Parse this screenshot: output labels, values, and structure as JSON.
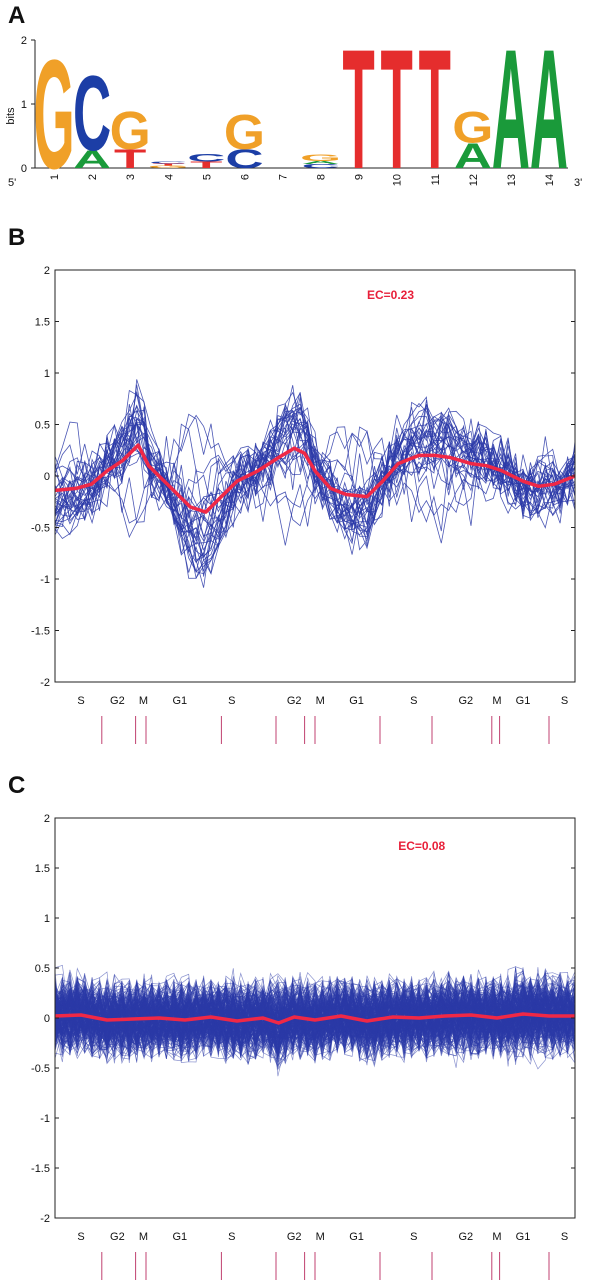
{
  "panels": {
    "a": "A",
    "b": "B",
    "c": "C"
  },
  "colors": {
    "A": "#1a9a3a",
    "C": "#1c3ea6",
    "G": "#f0a028",
    "T": "#e52d2d",
    "profile": "#2b3aa8",
    "mean": "#f02846",
    "axis": "#222222",
    "cycle_mark": "#c04070"
  },
  "chart_data": [
    {
      "type": "sequence-logo",
      "ylabel": "bits",
      "ylim": [
        0,
        2
      ],
      "yticks": [
        "0",
        "1",
        "2"
      ],
      "end_labels": {
        "left": "5'",
        "right": "3'"
      },
      "positions": [
        {
          "label": "1",
          "stack": [
            {
              "base": "G",
              "height": 1.75
            }
          ]
        },
        {
          "label": "2",
          "stack": [
            {
              "base": "A",
              "height": 0.28
            },
            {
              "base": "C",
              "height": 1.2
            }
          ]
        },
        {
          "label": "3",
          "stack": [
            {
              "base": "T",
              "height": 0.3
            },
            {
              "base": "G",
              "height": 0.6
            }
          ]
        },
        {
          "label": "4",
          "stack": [
            {
              "base": "G",
              "height": 0.04
            },
            {
              "base": "T",
              "height": 0.03
            },
            {
              "base": "C",
              "height": 0.03
            }
          ]
        },
        {
          "label": "5",
          "stack": [
            {
              "base": "T",
              "height": 0.1
            },
            {
              "base": "C",
              "height": 0.12
            }
          ]
        },
        {
          "label": "6",
          "stack": [
            {
              "base": "C",
              "height": 0.3
            },
            {
              "base": "G",
              "height": 0.55
            }
          ]
        },
        {
          "label": "7",
          "stack": []
        },
        {
          "label": "8",
          "stack": [
            {
              "base": "C",
              "height": 0.06
            },
            {
              "base": "A",
              "height": 0.05
            },
            {
              "base": "G",
              "height": 0.1
            }
          ]
        },
        {
          "label": "9",
          "stack": [
            {
              "base": "T",
              "height": 1.92
            }
          ]
        },
        {
          "label": "10",
          "stack": [
            {
              "base": "T",
              "height": 1.92
            }
          ]
        },
        {
          "label": "11",
          "stack": [
            {
              "base": "T",
              "height": 1.92
            }
          ]
        },
        {
          "label": "12",
          "stack": [
            {
              "base": "A",
              "height": 0.4
            },
            {
              "base": "G",
              "height": 0.5
            }
          ]
        },
        {
          "label": "13",
          "stack": [
            {
              "base": "A",
              "height": 1.92
            }
          ]
        },
        {
          "label": "14",
          "stack": [
            {
              "base": "A",
              "height": 1.92
            }
          ]
        }
      ]
    },
    {
      "type": "line",
      "annotation": "EC=0.23",
      "annotation_pos": [
        0.6,
        1.72
      ],
      "ylim": [
        -2,
        2
      ],
      "yticks": [
        "2",
        "1.5",
        "1",
        "0.5",
        "0",
        "-0.5",
        "-1",
        "-1.5",
        "-2"
      ],
      "xlim": [
        0,
        1
      ],
      "phase_labels": [
        {
          "label": "S",
          "x": 0.05
        },
        {
          "label": "G2",
          "x": 0.12
        },
        {
          "label": "M",
          "x": 0.17
        },
        {
          "label": "G1",
          "x": 0.24
        },
        {
          "label": "S",
          "x": 0.34
        },
        {
          "label": "G2",
          "x": 0.46
        },
        {
          "label": "M",
          "x": 0.51
        },
        {
          "label": "G1",
          "x": 0.58
        },
        {
          "label": "S",
          "x": 0.69
        },
        {
          "label": "G2",
          "x": 0.79
        },
        {
          "label": "M",
          "x": 0.85
        },
        {
          "label": "G1",
          "x": 0.9
        },
        {
          "label": "S",
          "x": 0.98
        }
      ],
      "cycle_marks": [
        0.09,
        0.155,
        0.175,
        0.32,
        0.425,
        0.48,
        0.5,
        0.625,
        0.725,
        0.84,
        0.855,
        0.95
      ],
      "profile_count": 32,
      "mean_series": {
        "x": [
          0.0,
          0.04,
          0.07,
          0.1,
          0.13,
          0.16,
          0.18,
          0.22,
          0.26,
          0.29,
          0.32,
          0.35,
          0.39,
          0.43,
          0.46,
          0.48,
          0.5,
          0.53,
          0.56,
          0.6,
          0.63,
          0.66,
          0.7,
          0.73,
          0.76,
          0.8,
          0.83,
          0.86,
          0.9,
          0.93,
          0.96,
          1.0
        ],
        "y": [
          -0.14,
          -0.12,
          -0.08,
          0.05,
          0.15,
          0.3,
          0.1,
          -0.1,
          -0.3,
          -0.35,
          -0.2,
          -0.05,
          0.05,
          0.18,
          0.27,
          0.22,
          0.05,
          -0.12,
          -0.18,
          -0.2,
          -0.05,
          0.12,
          0.2,
          0.2,
          0.18,
          0.12,
          0.1,
          0.05,
          -0.05,
          -0.1,
          -0.08,
          0.0
        ]
      }
    },
    {
      "type": "line",
      "annotation": "EC=0.08",
      "annotation_pos": [
        0.66,
        1.68
      ],
      "ylim": [
        -2,
        2
      ],
      "yticks": [
        "2",
        "1.5",
        "1",
        "0.5",
        "0",
        "-0.5",
        "-1",
        "-1.5",
        "-2"
      ],
      "xlim": [
        0,
        1
      ],
      "phase_labels": [
        {
          "label": "S",
          "x": 0.05
        },
        {
          "label": "G2",
          "x": 0.12
        },
        {
          "label": "M",
          "x": 0.17
        },
        {
          "label": "G1",
          "x": 0.24
        },
        {
          "label": "S",
          "x": 0.34
        },
        {
          "label": "G2",
          "x": 0.46
        },
        {
          "label": "M",
          "x": 0.51
        },
        {
          "label": "G1",
          "x": 0.58
        },
        {
          "label": "S",
          "x": 0.69
        },
        {
          "label": "G2",
          "x": 0.79
        },
        {
          "label": "M",
          "x": 0.85
        },
        {
          "label": "G1",
          "x": 0.9
        },
        {
          "label": "S",
          "x": 0.98
        }
      ],
      "cycle_marks": [
        0.09,
        0.155,
        0.175,
        0.32,
        0.425,
        0.48,
        0.5,
        0.625,
        0.725,
        0.84,
        0.855,
        0.95
      ],
      "profile_count": 260,
      "mean_series": {
        "x": [
          0.0,
          0.05,
          0.1,
          0.15,
          0.2,
          0.25,
          0.3,
          0.35,
          0.4,
          0.43,
          0.46,
          0.5,
          0.55,
          0.6,
          0.65,
          0.7,
          0.75,
          0.8,
          0.85,
          0.9,
          0.95,
          1.0
        ],
        "y": [
          0.02,
          0.03,
          -0.02,
          -0.01,
          0.0,
          -0.02,
          0.01,
          -0.03,
          0.0,
          -0.05,
          0.01,
          -0.02,
          0.02,
          -0.03,
          0.01,
          0.0,
          0.02,
          0.03,
          0.0,
          0.04,
          0.02,
          0.02
        ]
      }
    }
  ]
}
